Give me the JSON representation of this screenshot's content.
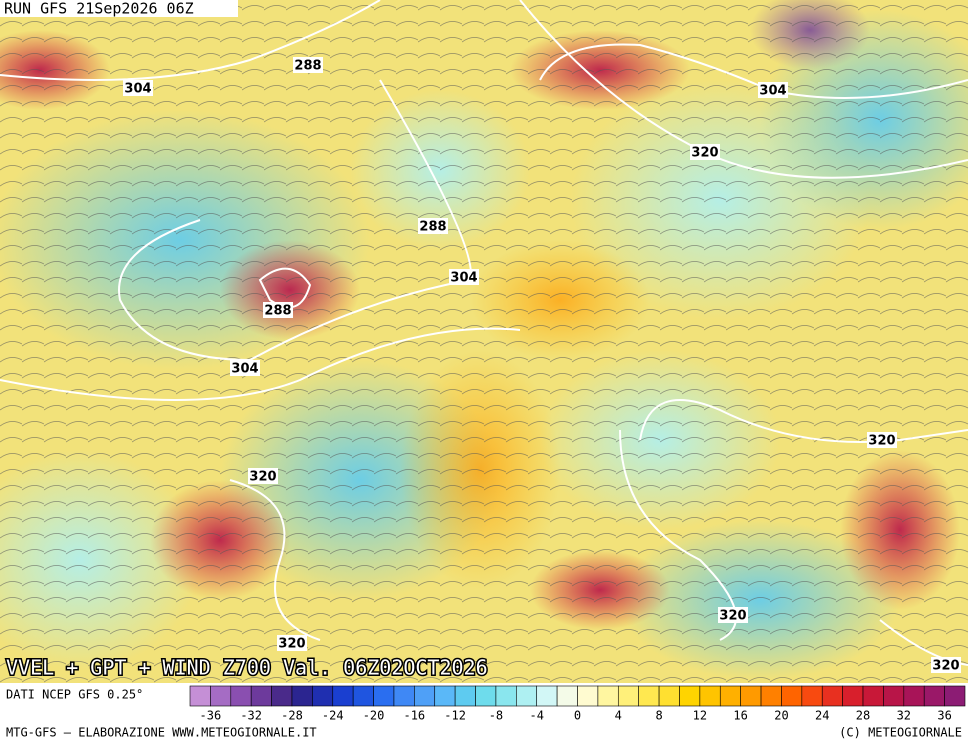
{
  "header": {
    "run": "RUN GFS 21Sep2026 06Z"
  },
  "map": {
    "contour_labels": [
      304,
      288,
      304,
      320,
      288,
      304,
      288,
      304,
      320,
      320,
      320,
      320,
      320
    ]
  },
  "footer": {
    "title": "VVEL + GPT + WIND Z700 Val. 06Z02OCT2026",
    "source": "DATI NCEP GFS 0.25°",
    "credit_left": "MTG-GFS — ELABORAZIONE WWW.METEOGIORNALE.IT",
    "credit_right": "(C) METEOGIORNALE"
  },
  "colorbar": {
    "colors": [
      "#c58fd6",
      "#a56cc4",
      "#8a4fb0",
      "#6d3a9c",
      "#4a2a8a",
      "#2b2590",
      "#1f2fb0",
      "#1a3fd0",
      "#1f55e0",
      "#2a6ef0",
      "#3f88f5",
      "#4fa0f7",
      "#5ab8f8",
      "#5ecbf0",
      "#6edcec",
      "#8ae6ee",
      "#aef0f2",
      "#d2f7f6",
      "#f4fbe8",
      "#fffbd0",
      "#fff6a0",
      "#fff07a",
      "#ffe850",
      "#ffe030",
      "#ffd400",
      "#ffc400",
      "#ffb000",
      "#ff9a00",
      "#ff8000",
      "#ff6400",
      "#f84a10",
      "#e83020",
      "#d81f2c",
      "#c81838",
      "#b81548",
      "#a81458",
      "#9a1868",
      "#8c1c74"
    ],
    "ticks": [
      -36,
      -32,
      -28,
      -24,
      -20,
      -16,
      -12,
      -8,
      -4,
      0,
      4,
      8,
      12,
      16,
      20,
      24,
      28,
      32,
      36
    ]
  }
}
